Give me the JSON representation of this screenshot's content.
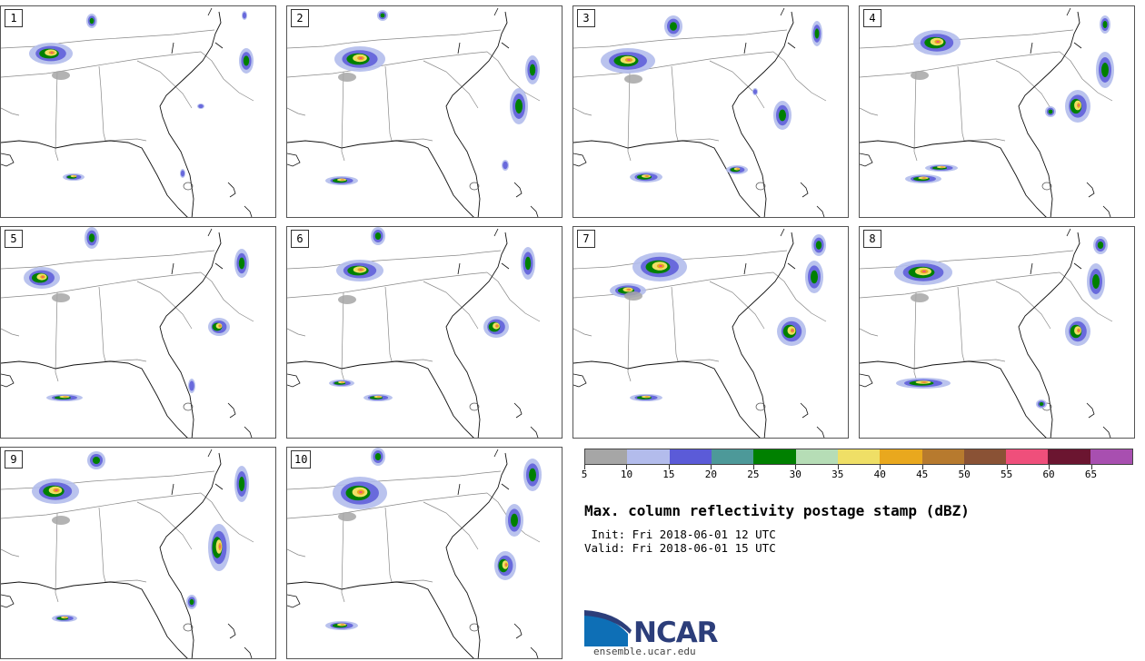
{
  "title": "Max. column reflectivity postage stamp (dBZ)",
  "init": " Init: Fri 2018-06-01 12 UTC",
  "valid": "Valid: Fri 2018-06-01 15 UTC",
  "members": [
    "1",
    "2",
    "3",
    "4",
    "5",
    "6",
    "7",
    "8",
    "9",
    "10"
  ],
  "colorbar": {
    "colors": [
      "#a6a6a6",
      "#b3bcec",
      "#5b5bd8",
      "#4d9999",
      "#008000",
      "#b6ddb6",
      "#efdf66",
      "#e9a81e",
      "#b77a2e",
      "#8a5235",
      "#ef4f7b",
      "#6b1530",
      "#a84fb0"
    ],
    "tick_values": [
      "5",
      "10",
      "15",
      "20",
      "25",
      "30",
      "35",
      "40",
      "45",
      "50",
      "55",
      "60",
      "65"
    ]
  },
  "branding": {
    "logo_text": "NCAR",
    "url": "ensemble.ucar.edu"
  }
}
